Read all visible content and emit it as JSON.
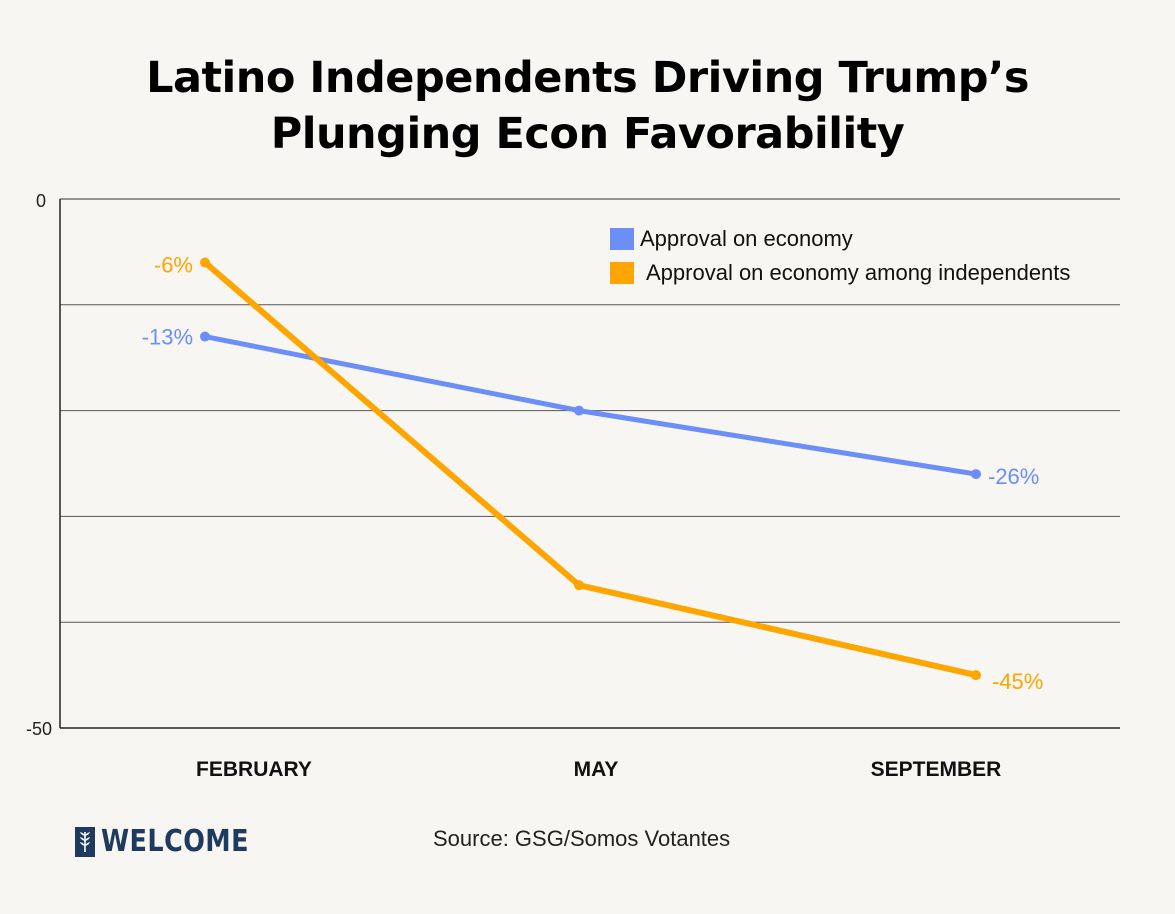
{
  "title_line1": "Latino Independents Driving Trump’s",
  "title_line2": "Plunging Econ Favorability",
  "source": "Source: GSG/Somos Votantes",
  "logo": {
    "name": "wheat-icon",
    "text": "WELCOME"
  },
  "colors": {
    "blue": "#6b8ef7",
    "orange": "#ffa500",
    "background": "#f7f6f3",
    "brand": "#1f3a5f"
  },
  "chart_data": {
    "type": "line",
    "title": "Latino Independents Driving Trump’s Plunging Econ Favorability",
    "categories": [
      "FEBRUARY",
      "MAY",
      "SEPTEMBER"
    ],
    "ylim": [
      -50,
      0
    ],
    "y_tick_labels": [
      "0",
      "-50"
    ],
    "y_ticks": [
      0,
      -10,
      -20,
      -30,
      -40,
      -50
    ],
    "legend_position": "top-right",
    "series": [
      {
        "name": "Approval on economy",
        "color": "#6b8ef7",
        "values": [
          -13,
          -20,
          -26
        ],
        "labels": [
          "-13%",
          "",
          "-26%"
        ]
      },
      {
        "name": "Approval on economy among independents",
        "color": "#ffa500",
        "values": [
          -6,
          -36.5,
          -45
        ],
        "labels": [
          "-6%",
          "",
          "-45%"
        ]
      }
    ]
  }
}
